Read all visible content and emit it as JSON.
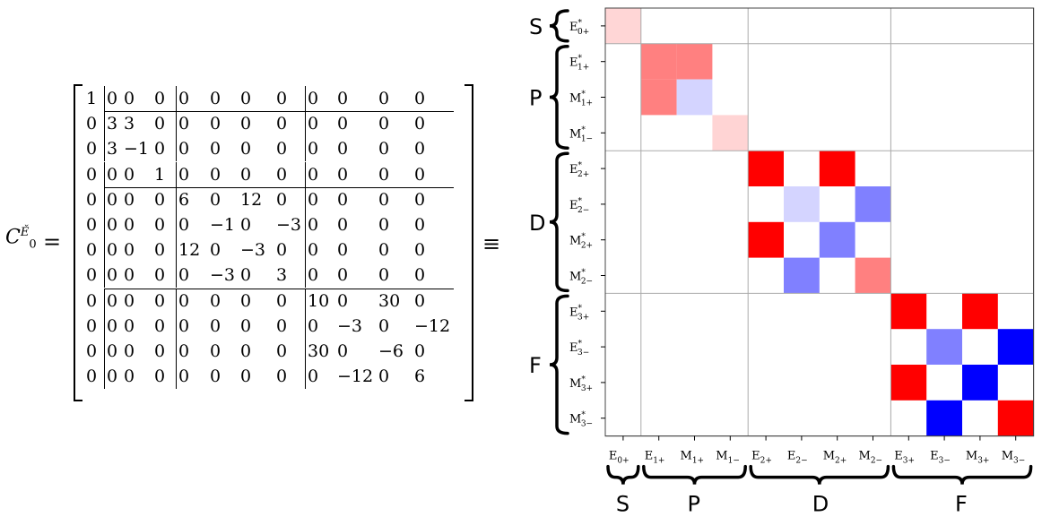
{
  "equation": {
    "lhs_symbol": "C",
    "lhs_subscript": "0",
    "lhs_superscript": "Ě",
    "equals": "=",
    "equiv": "≡"
  },
  "matrix": {
    "rows": [
      [
        "1",
        "0",
        "0",
        "0",
        "0",
        "0",
        "0",
        "0",
        "0",
        "0",
        "0",
        "0"
      ],
      [
        "0",
        "3",
        "3",
        "0",
        "0",
        "0",
        "0",
        "0",
        "0",
        "0",
        "0",
        "0"
      ],
      [
        "0",
        "3",
        "−1",
        "0",
        "0",
        "0",
        "0",
        "0",
        "0",
        "0",
        "0",
        "0"
      ],
      [
        "0",
        "0",
        "0",
        "1",
        "0",
        "0",
        "0",
        "0",
        "0",
        "0",
        "0",
        "0"
      ],
      [
        "0",
        "0",
        "0",
        "0",
        "6",
        "0",
        "12",
        "0",
        "0",
        "0",
        "0",
        "0"
      ],
      [
        "0",
        "0",
        "0",
        "0",
        "0",
        "−1",
        "0",
        "−3",
        "0",
        "0",
        "0",
        "0"
      ],
      [
        "0",
        "0",
        "0",
        "0",
        "12",
        "0",
        "−3",
        "0",
        "0",
        "0",
        "0",
        "0"
      ],
      [
        "0",
        "0",
        "0",
        "0",
        "0",
        "−3",
        "0",
        "3",
        "0",
        "0",
        "0",
        "0"
      ],
      [
        "0",
        "0",
        "0",
        "0",
        "0",
        "0",
        "0",
        "0",
        "10",
        "0",
        "30",
        "0"
      ],
      [
        "0",
        "0",
        "0",
        "0",
        "0",
        "0",
        "0",
        "0",
        "0",
        "−3",
        "0",
        "−12"
      ],
      [
        "0",
        "0",
        "0",
        "0",
        "0",
        "0",
        "0",
        "0",
        "30",
        "0",
        "−6",
        "0"
      ],
      [
        "0",
        "0",
        "0",
        "0",
        "0",
        "0",
        "0",
        "0",
        "0",
        "−12",
        "0",
        "6"
      ]
    ]
  },
  "heatmap": {
    "row_labels": [
      {
        "base": "E",
        "sup": "*",
        "sub": "0+"
      },
      {
        "base": "E",
        "sup": "*",
        "sub": "1+"
      },
      {
        "base": "M",
        "sup": "*",
        "sub": "1+"
      },
      {
        "base": "M",
        "sup": "*",
        "sub": "1−"
      },
      {
        "base": "E",
        "sup": "*",
        "sub": "2+"
      },
      {
        "base": "E",
        "sup": "*",
        "sub": "2−"
      },
      {
        "base": "M",
        "sup": "*",
        "sub": "2+"
      },
      {
        "base": "M",
        "sup": "*",
        "sub": "2−"
      },
      {
        "base": "E",
        "sup": "*",
        "sub": "3+"
      },
      {
        "base": "E",
        "sup": "*",
        "sub": "3−"
      },
      {
        "base": "M",
        "sup": "*",
        "sub": "3+"
      },
      {
        "base": "M",
        "sup": "*",
        "sub": "3−"
      }
    ],
    "col_labels": [
      {
        "base": "E",
        "sub": "0+"
      },
      {
        "base": "E",
        "sub": "1+"
      },
      {
        "base": "M",
        "sub": "1+"
      },
      {
        "base": "M",
        "sub": "1−"
      },
      {
        "base": "E",
        "sub": "2+"
      },
      {
        "base": "E",
        "sub": "2−"
      },
      {
        "base": "M",
        "sub": "2+"
      },
      {
        "base": "M",
        "sub": "2−"
      },
      {
        "base": "E",
        "sub": "3+"
      },
      {
        "base": "E",
        "sub": "3−"
      },
      {
        "base": "M",
        "sub": "3+"
      },
      {
        "base": "M",
        "sub": "3−"
      }
    ],
    "groups": [
      "S",
      "P",
      "D",
      "F"
    ],
    "color_positive": "#ff0000",
    "color_negative": "#0000ff",
    "grid_color": "#aaaaaa"
  }
}
